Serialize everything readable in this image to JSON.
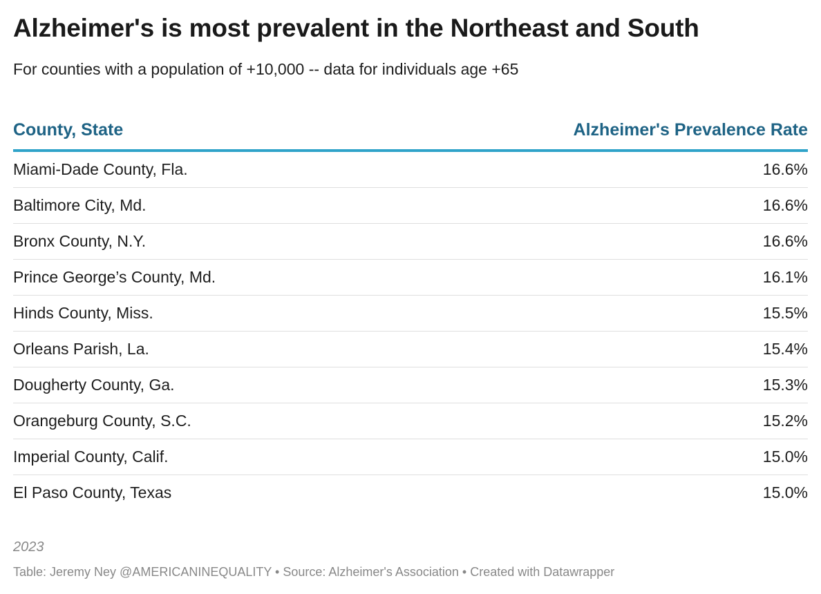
{
  "chart_data": {
    "type": "table",
    "title": "Alzheimer's is most prevalent in the Northeast and South",
    "subtitle": "For counties with a population of +10,000 -- data for individuals age +65",
    "columns": [
      "County, State",
      "Alzheimer's Prevalence Rate"
    ],
    "rows": [
      {
        "county": "Miami-Dade County, Fla.",
        "rate": "16.6%"
      },
      {
        "county": "Baltimore City, Md.",
        "rate": "16.6%"
      },
      {
        "county": "Bronx County, N.Y.",
        "rate": "16.6%"
      },
      {
        "county": "Prince George’s County, Md.",
        "rate": "16.1%"
      },
      {
        "county": "Hinds County, Miss.",
        "rate": "15.5%"
      },
      {
        "county": "Orleans Parish, La.",
        "rate": "15.4%"
      },
      {
        "county": "Dougherty County, Ga.",
        "rate": "15.3%"
      },
      {
        "county": "Orangeburg County, S.C.",
        "rate": "15.2%"
      },
      {
        "county": "Imperial County, Calif.",
        "rate": "15.0%"
      },
      {
        "county": "El Paso County, Texas",
        "rate": "15.0%"
      }
    ],
    "note": "2023",
    "footer": "Table: Jeremy Ney @AMERICANINEQUALITY • Source: Alzheimer's Association • Created with Datawrapper"
  },
  "colors": {
    "header_text": "#1e6385",
    "header_rule": "#2fa3c9",
    "row_divider": "#dedede",
    "footer_text": "#888888"
  }
}
